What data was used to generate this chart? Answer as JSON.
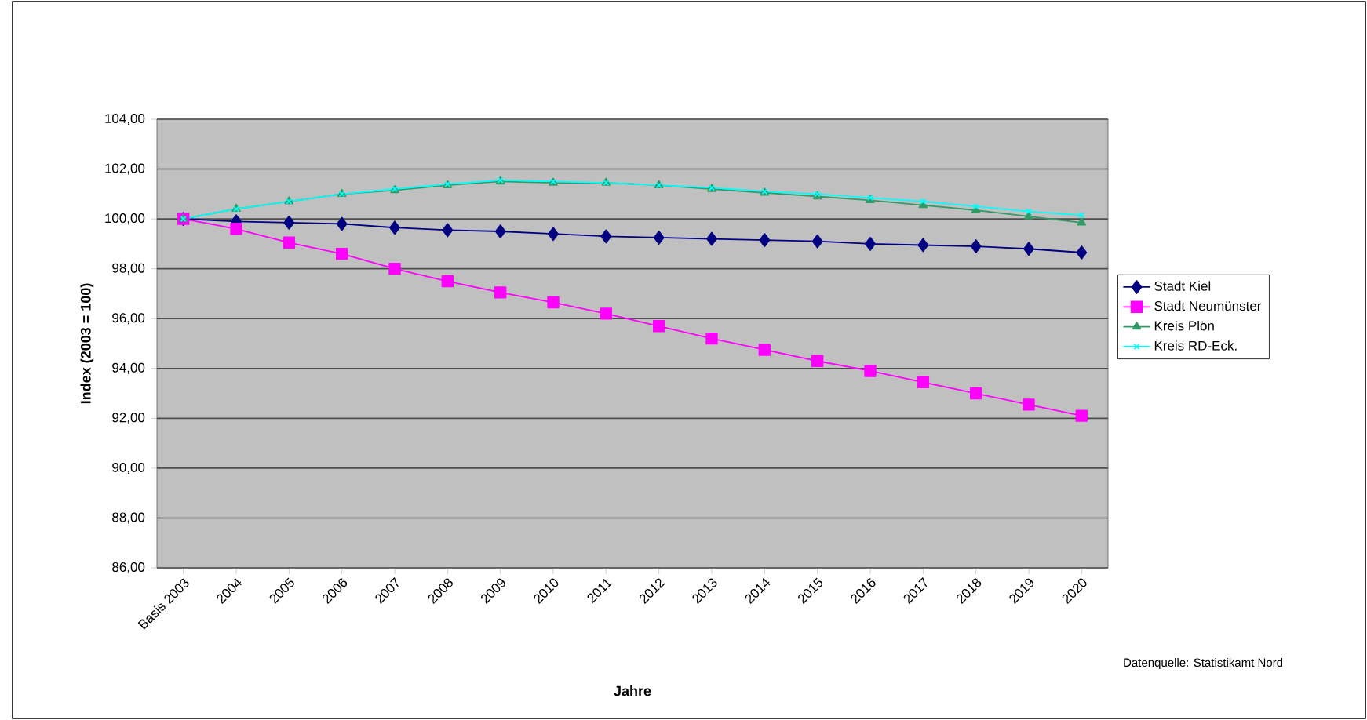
{
  "chart_data": {
    "type": "line",
    "xlabel": "Jahre",
    "ylabel": "Index (2003 = 100)",
    "categories": [
      "Basis 2003",
      "2004",
      "2005",
      "2006",
      "2007",
      "2008",
      "2009",
      "2010",
      "2011",
      "2012",
      "2013",
      "2014",
      "2015",
      "2016",
      "2017",
      "2018",
      "2019",
      "2020"
    ],
    "series": [
      {
        "name": "Stadt Kiel",
        "color": "#000080",
        "marker": "diamond",
        "values": [
          100,
          99.9,
          99.85,
          99.8,
          99.65,
          99.55,
          99.5,
          99.4,
          99.3,
          99.25,
          99.2,
          99.15,
          99.1,
          99.0,
          98.95,
          98.9,
          98.8,
          98.65
        ]
      },
      {
        "name": "Stadt Neumünster",
        "color": "#ff00ff",
        "marker": "square",
        "values": [
          100,
          99.6,
          99.05,
          98.6,
          98.0,
          97.5,
          97.05,
          96.65,
          96.2,
          95.7,
          95.2,
          94.75,
          94.3,
          93.9,
          93.45,
          93.0,
          92.55,
          92.1
        ]
      },
      {
        "name": "Kreis Plön",
        "color": "#339966",
        "marker": "triangle",
        "values": [
          100,
          100.4,
          100.7,
          101.0,
          101.15,
          101.35,
          101.5,
          101.45,
          101.45,
          101.35,
          101.2,
          101.05,
          100.9,
          100.75,
          100.55,
          100.35,
          100.1,
          99.85
        ]
      },
      {
        "name": "Kreis RD-Eck.",
        "color": "#00ffff",
        "marker": "cross",
        "values": [
          100,
          100.4,
          100.7,
          101.0,
          101.2,
          101.4,
          101.55,
          101.5,
          101.45,
          101.35,
          101.25,
          101.1,
          101.0,
          100.85,
          100.7,
          100.5,
          100.3,
          100.15
        ]
      }
    ],
    "ylim": [
      86,
      104
    ],
    "yticks": [
      {
        "value": 86,
        "label": "86,00"
      },
      {
        "value": 88,
        "label": "88,00"
      },
      {
        "value": 90,
        "label": "90,00"
      },
      {
        "value": 92,
        "label": "92,00"
      },
      {
        "value": 94,
        "label": "94,00"
      },
      {
        "value": 96,
        "label": "96,00"
      },
      {
        "value": 98,
        "label": "98,00"
      },
      {
        "value": 100,
        "label": "100,00"
      },
      {
        "value": 102,
        "label": "102,00"
      },
      {
        "value": 104,
        "label": "104,00"
      }
    ],
    "grid": "y",
    "legend": "right",
    "line_style": "solid",
    "annotations": [
      "Datenquelle: Statistikamt Nord"
    ]
  }
}
